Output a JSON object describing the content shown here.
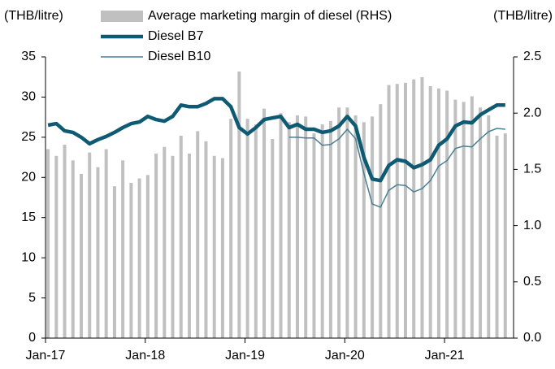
{
  "chart_data": {
    "type": "bar-line",
    "y_label": "(THB/litre)",
    "y2_label": "(THB/litre)",
    "categories": [
      "Jan-17",
      null,
      null,
      null,
      null,
      null,
      null,
      null,
      null,
      null,
      null,
      null,
      "Jan-18",
      null,
      null,
      null,
      null,
      null,
      null,
      null,
      null,
      null,
      null,
      null,
      "Jan-19",
      null,
      null,
      null,
      null,
      null,
      null,
      null,
      null,
      null,
      null,
      null,
      "Jan-20",
      null,
      null,
      null,
      null,
      null,
      null,
      null,
      null,
      null,
      null,
      null,
      "Jan-21",
      null,
      null,
      null,
      null,
      null,
      null,
      null
    ],
    "series": [
      {
        "name": "Average marketing margin of diesel (RHS)",
        "kind": "bar",
        "axis": "y2",
        "color": "#c0c0c0",
        "values": [
          1.68,
          1.62,
          1.72,
          1.58,
          1.46,
          1.65,
          1.52,
          1.68,
          1.35,
          1.58,
          1.38,
          1.42,
          1.45,
          1.64,
          1.7,
          1.62,
          1.8,
          1.64,
          1.84,
          1.75,
          1.62,
          1.6,
          1.95,
          2.37,
          1.95,
          1.9,
          2.04,
          1.77,
          2.0,
          1.92,
          1.98,
          1.97,
          1.82,
          1.9,
          1.93,
          2.05,
          2.05,
          1.98,
          1.92,
          1.97,
          2.08,
          2.25,
          2.26,
          2.27,
          2.3,
          2.32,
          2.24,
          2.22,
          2.2,
          2.12,
          2.1,
          2.15,
          2.05,
          1.98,
          1.8,
          1.82
        ]
      },
      {
        "name": "Diesel B7",
        "kind": "line",
        "color": "#0e5a73",
        "width": 4.5,
        "values": [
          26.5,
          26.7,
          25.8,
          25.6,
          25.0,
          24.2,
          24.7,
          25.1,
          25.6,
          26.2,
          26.7,
          26.9,
          27.6,
          27.2,
          27.0,
          27.6,
          29.0,
          28.8,
          28.8,
          29.2,
          29.8,
          29.8,
          28.8,
          26.2,
          25.4,
          26.2,
          27.2,
          27.4,
          27.6,
          26.2,
          26.6,
          26.0,
          26.0,
          25.6,
          25.8,
          26.4,
          27.6,
          26.4,
          22.5,
          19.8,
          19.6,
          21.5,
          22.2,
          22.0,
          21.2,
          21.6,
          22.2,
          24.0,
          24.8,
          26.4,
          26.9,
          26.8,
          27.8,
          28.4,
          29.0,
          29.0
        ]
      },
      {
        "name": "Diesel B10",
        "kind": "line",
        "color": "#4a7f92",
        "width": 1.5,
        "values": [
          null,
          null,
          null,
          null,
          null,
          null,
          null,
          null,
          null,
          null,
          null,
          null,
          null,
          null,
          null,
          null,
          null,
          null,
          null,
          null,
          null,
          null,
          null,
          null,
          null,
          null,
          null,
          null,
          null,
          25.0,
          25.0,
          24.9,
          24.9,
          24.0,
          24.1,
          24.8,
          26.0,
          24.8,
          20.5,
          16.7,
          16.3,
          18.4,
          19.1,
          19.0,
          18.2,
          18.6,
          19.6,
          21.4,
          22.1,
          23.6,
          23.9,
          23.8,
          24.8,
          25.7,
          26.1,
          26.0
        ]
      }
    ],
    "ylim": [
      0,
      35
    ],
    "yticks": [
      0,
      5,
      10,
      15,
      20,
      25,
      30,
      35
    ],
    "y2lim": [
      0,
      2.5
    ],
    "y2ticks": [
      {
        "value": 0,
        "label": "0.0"
      },
      0.5,
      {
        "value": 1,
        "label": "1.0"
      },
      1.5,
      {
        "value": 2,
        "label": "2.0"
      },
      2.5
    ]
  }
}
